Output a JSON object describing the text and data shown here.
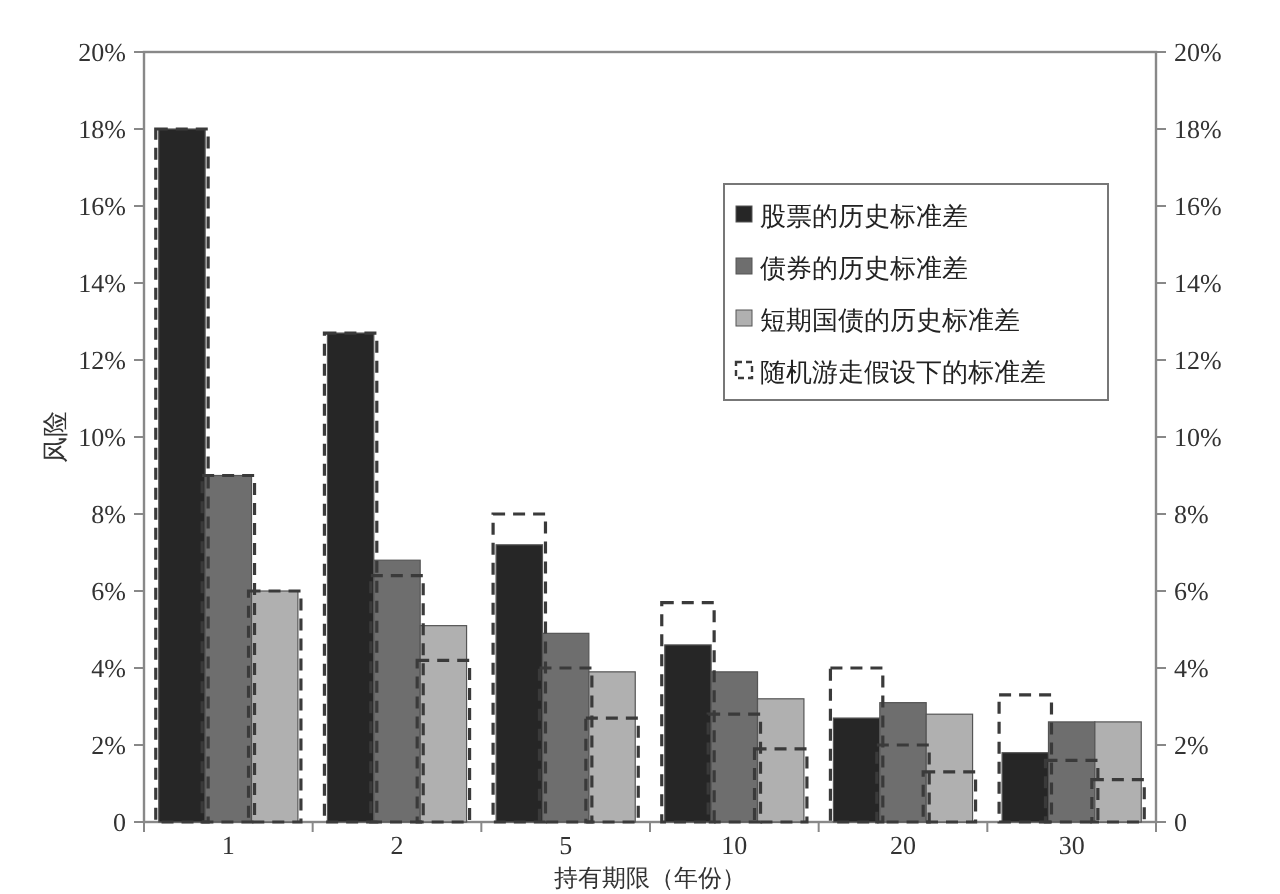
{
  "chart_data": {
    "type": "bar",
    "xlabel": "持有期限（年份）",
    "ylabel": "风险",
    "categories": [
      "1",
      "2",
      "5",
      "10",
      "20",
      "30"
    ],
    "series": [
      {
        "name": "股票的历史标准差",
        "color": "#262626",
        "values": [
          18.0,
          12.7,
          7.2,
          4.6,
          2.7,
          1.8
        ]
      },
      {
        "name": "债券的历史标准差",
        "color": "#6e6e6e",
        "values": [
          9.0,
          6.8,
          4.9,
          3.9,
          3.1,
          2.6
        ]
      },
      {
        "name": "短期国债的历史标准差",
        "color": "#b0b0b0",
        "values": [
          6.0,
          5.1,
          3.9,
          3.2,
          2.8,
          2.6
        ]
      },
      {
        "name": "随机游走假设下的标准差",
        "color": "#3a3a3a",
        "line_style": "dashed",
        "values": [
          18.0,
          12.7,
          8.0,
          5.7,
          4.0,
          3.3
        ]
      },
      {
        "color": "#3a3a3a",
        "line_style": "dashed",
        "values": [
          9.0,
          6.4,
          4.0,
          2.8,
          2.0,
          1.6
        ]
      },
      {
        "color": "#3a3a3a",
        "line_style": "dashed",
        "values": [
          6.0,
          4.2,
          2.7,
          1.9,
          1.3,
          1.1
        ]
      }
    ],
    "ylim": [
      0,
      20
    ],
    "yticks": [
      {
        "value": 0,
        "label": "0"
      },
      {
        "value": 2,
        "label": "2%"
      },
      {
        "value": 4,
        "label": "4%"
      },
      {
        "value": 6,
        "label": "6%"
      },
      {
        "value": 8,
        "label": "8%"
      },
      {
        "value": 10,
        "label": "10%"
      },
      {
        "value": 12,
        "label": "12%"
      },
      {
        "value": 14,
        "label": "14%"
      },
      {
        "value": 16,
        "label": "16%"
      },
      {
        "value": 18,
        "label": "18%"
      },
      {
        "value": 20,
        "label": "20%"
      }
    ],
    "y2lim": [
      0,
      20
    ],
    "y2ticks": [
      {
        "value": 0,
        "label": "0"
      },
      {
        "value": 2,
        "label": "2%"
      },
      {
        "value": 4,
        "label": "4%"
      },
      {
        "value": 6,
        "label": "6%"
      },
      {
        "value": 8,
        "label": "8%"
      },
      {
        "value": 10,
        "label": "10%"
      },
      {
        "value": 12,
        "label": "12%"
      },
      {
        "value": 14,
        "label": "14%"
      },
      {
        "value": 16,
        "label": "16%"
      },
      {
        "value": 18,
        "label": "18%"
      },
      {
        "value": 20,
        "label": "20%"
      }
    ],
    "legend": "top right"
  }
}
